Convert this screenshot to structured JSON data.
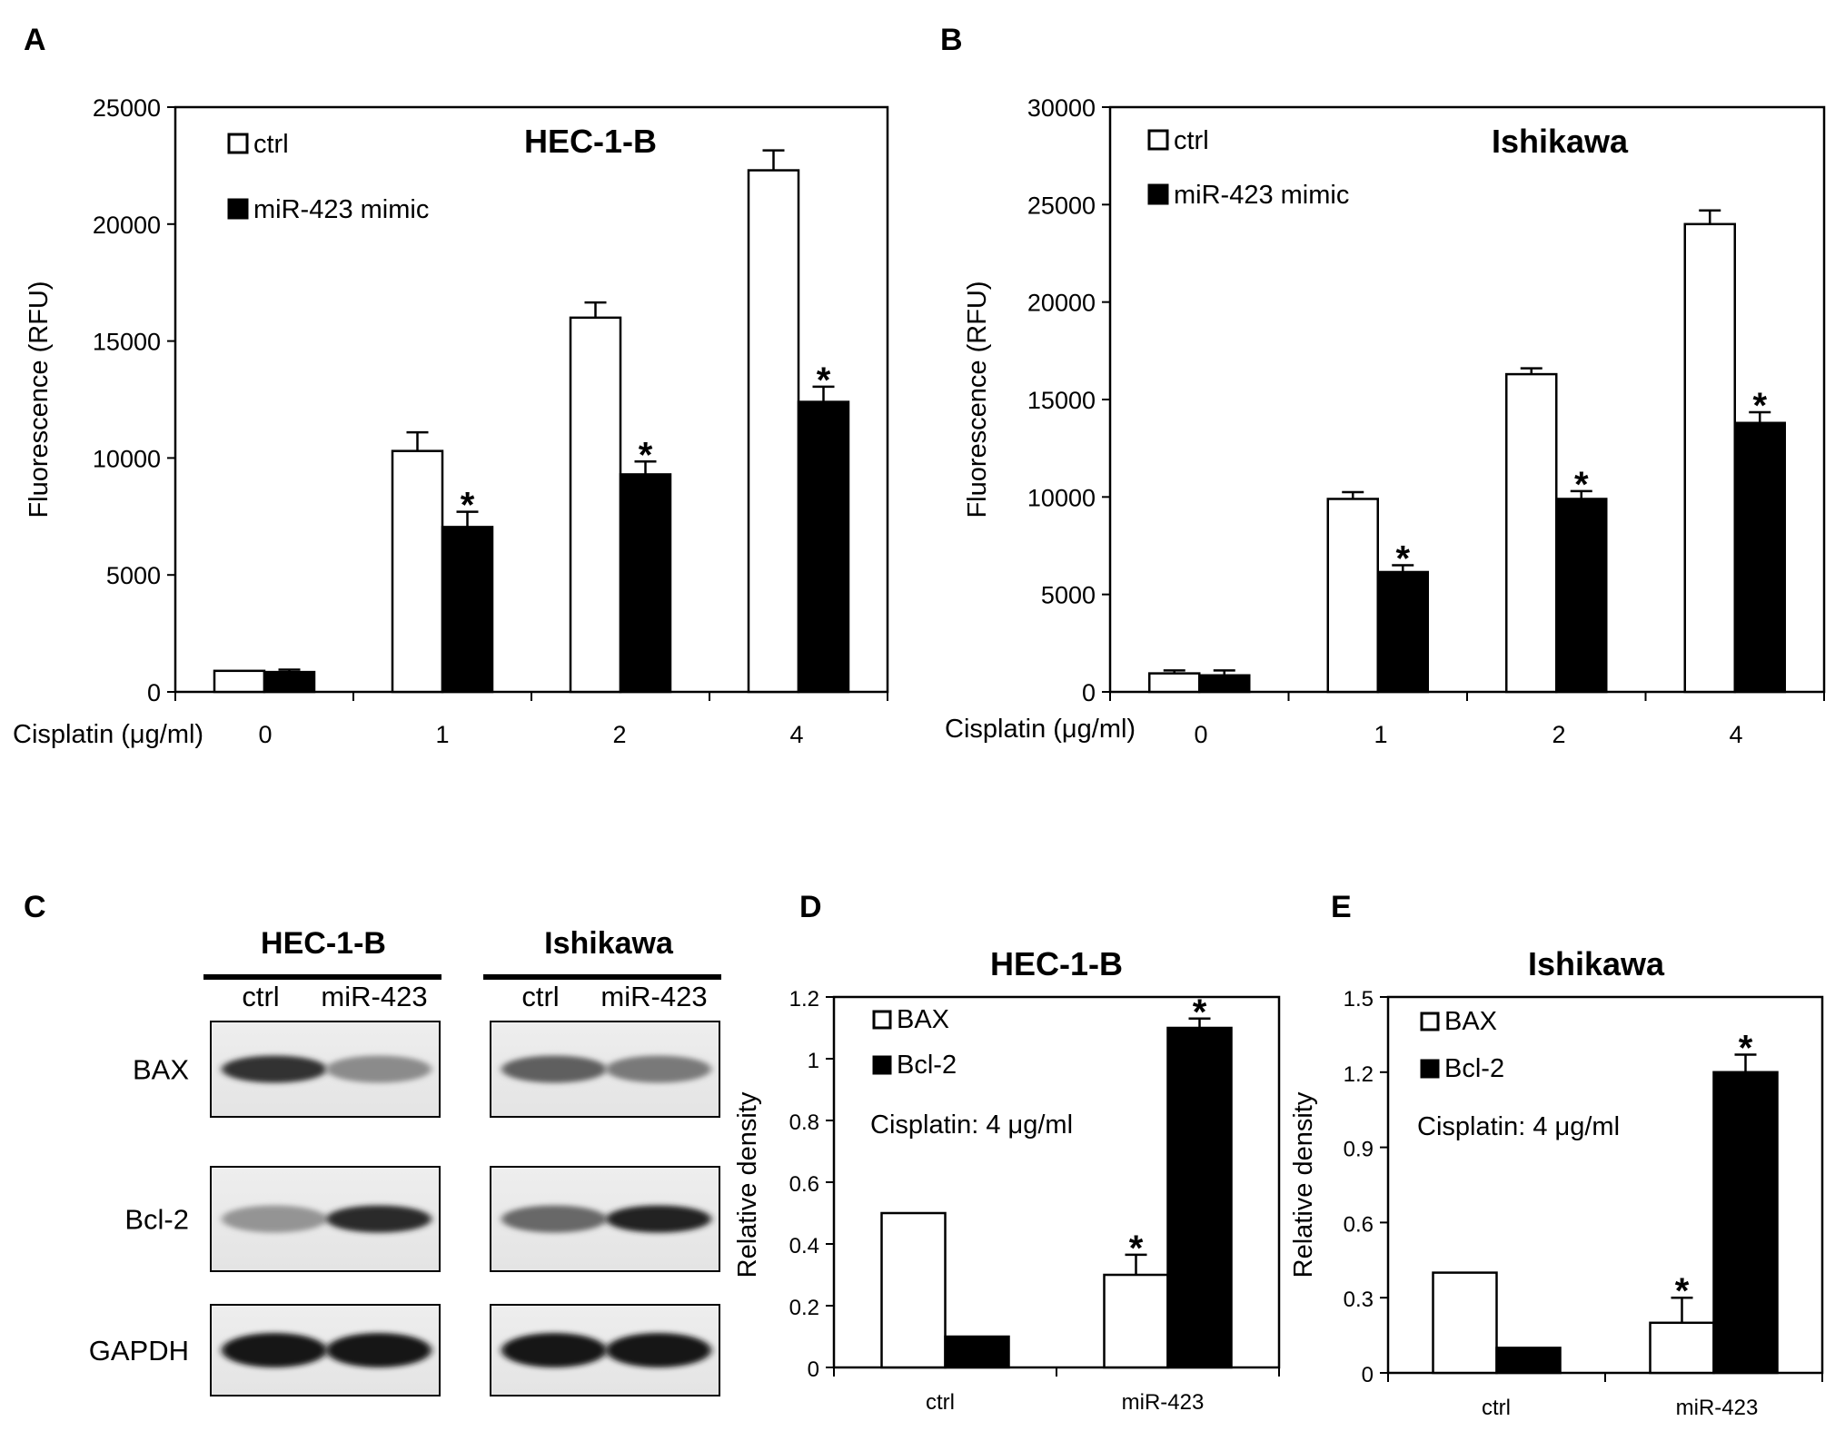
{
  "panels": {
    "A": "A",
    "B": "B",
    "C": "C",
    "D": "D",
    "E": "E"
  },
  "chart_data": [
    {
      "id": "A",
      "type": "bar",
      "title": "HEC-1-B",
      "ylabel": "Fluorescence (RFU)",
      "xlabel": "Cisplatin (μg/ml)",
      "categories": [
        "0",
        "1",
        "2",
        "4"
      ],
      "ylim": [
        0,
        25000
      ],
      "yticks": [
        "0",
        "5000",
        "10000",
        "15000",
        "20000",
        "25000"
      ],
      "legend_position": "top-left",
      "series": [
        {
          "name": "ctrl",
          "values": [
            900,
            10300,
            16000,
            22300
          ],
          "errors": [
            0,
            800,
            650,
            850
          ],
          "color": "#ffffff"
        },
        {
          "name": "miR-423 mimic",
          "values": [
            850,
            7050,
            9300,
            12400
          ],
          "errors": [
            100,
            650,
            550,
            650
          ],
          "color": "#000000"
        }
      ],
      "annotations": [
        {
          "series": "miR-423 mimic",
          "category": "1",
          "text": "*"
        },
        {
          "series": "miR-423 mimic",
          "category": "2",
          "text": "*"
        },
        {
          "series": "miR-423 mimic",
          "category": "4",
          "text": "*"
        }
      ]
    },
    {
      "id": "B",
      "type": "bar",
      "title": "Ishikawa",
      "ylabel": "Fluorescence (RFU)",
      "xlabel": "Cisplatin (μg/ml)",
      "categories": [
        "0",
        "1",
        "2",
        "4"
      ],
      "ylim": [
        0,
        30000
      ],
      "yticks": [
        "0",
        "5000",
        "10000",
        "15000",
        "20000",
        "25000",
        "30000"
      ],
      "legend_position": "top-left",
      "series": [
        {
          "name": "ctrl",
          "values": [
            950,
            9900,
            16300,
            24000
          ],
          "errors": [
            150,
            350,
            300,
            700
          ],
          "color": "#ffffff"
        },
        {
          "name": "miR-423 mimic",
          "values": [
            850,
            6150,
            9900,
            13800
          ],
          "errors": [
            250,
            350,
            400,
            550
          ],
          "color": "#000000"
        }
      ],
      "annotations": [
        {
          "series": "miR-423 mimic",
          "category": "1",
          "text": "*"
        },
        {
          "series": "miR-423 mimic",
          "category": "2",
          "text": "*"
        },
        {
          "series": "miR-423 mimic",
          "category": "4",
          "text": "*"
        }
      ]
    },
    {
      "id": "D",
      "type": "bar",
      "title": "HEC-1-B",
      "ylabel": "Relative density",
      "xlabel": "",
      "categories": [
        "ctrl",
        "miR-423"
      ],
      "ylim": [
        0,
        1.2
      ],
      "yticks": [
        "0",
        "0.2",
        "0.4",
        "0.6",
        "0.8",
        "1",
        "1.2"
      ],
      "legend_position": "top-left",
      "note": "Cisplatin: 4 μg/ml",
      "series": [
        {
          "name": "BAX",
          "values": [
            0.5,
            0.3
          ],
          "errors": [
            0,
            0.065
          ],
          "color": "#ffffff"
        },
        {
          "name": "Bcl-2",
          "values": [
            0.1,
            1.1
          ],
          "errors": [
            0,
            0.03
          ],
          "color": "#000000"
        }
      ],
      "annotations": [
        {
          "series": "BAX",
          "category": "miR-423",
          "text": "*"
        },
        {
          "series": "Bcl-2",
          "category": "miR-423",
          "text": "*"
        }
      ]
    },
    {
      "id": "E",
      "type": "bar",
      "title": "Ishikawa",
      "ylabel": "Relative density",
      "xlabel": "",
      "categories": [
        "ctrl",
        "miR-423"
      ],
      "ylim": [
        0,
        1.5
      ],
      "yticks": [
        "0",
        "0.3",
        "0.6",
        "0.9",
        "1.2",
        "1.5"
      ],
      "legend_position": "top-left",
      "note": "Cisplatin: 4 μg/ml",
      "series": [
        {
          "name": "BAX",
          "values": [
            0.4,
            0.2
          ],
          "errors": [
            0,
            0.1
          ],
          "color": "#ffffff"
        },
        {
          "name": "Bcl-2",
          "values": [
            0.1,
            1.2
          ],
          "errors": [
            0,
            0.07
          ],
          "color": "#000000"
        }
      ],
      "annotations": [
        {
          "series": "BAX",
          "category": "miR-423",
          "text": "*"
        },
        {
          "series": "Bcl-2",
          "category": "miR-423",
          "text": "*"
        }
      ]
    }
  ],
  "blot": {
    "groups": [
      {
        "title": "HEC-1-B",
        "lanes": [
          "ctrl",
          "miR-423"
        ]
      },
      {
        "title": "Ishikawa",
        "lanes": [
          "ctrl",
          "miR-423"
        ]
      }
    ],
    "rows": [
      {
        "label": "BAX",
        "intensity": [
          [
            0.85,
            0.35
          ],
          [
            0.6,
            0.45
          ]
        ]
      },
      {
        "label": "Bcl-2",
        "intensity": [
          [
            0.3,
            0.9
          ],
          [
            0.55,
            0.95
          ]
        ]
      },
      {
        "label": "GAPDH",
        "intensity": [
          [
            1.0,
            1.0
          ],
          [
            1.0,
            1.0
          ]
        ]
      }
    ]
  }
}
